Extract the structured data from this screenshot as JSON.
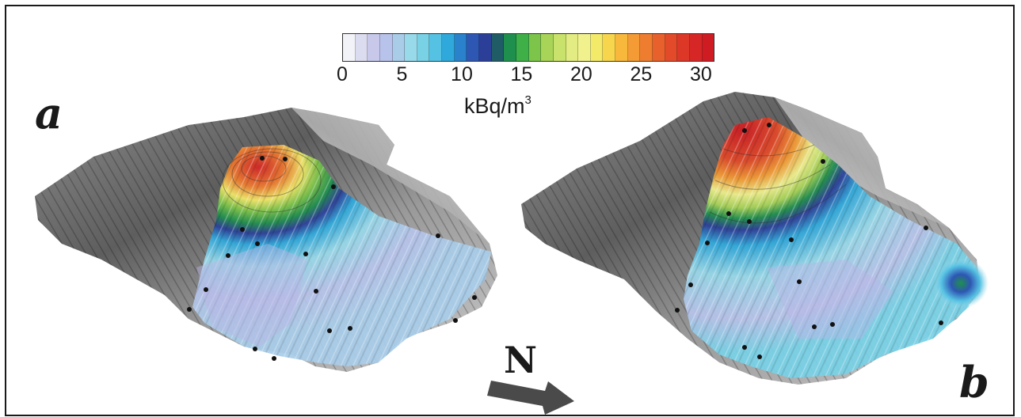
{
  "panels": {
    "left_label": "a",
    "right_label": "b"
  },
  "colorbar": {
    "tick_labels": [
      "0",
      "5",
      "10",
      "15",
      "20",
      "25",
      "30"
    ],
    "unit_base": "kBq/m",
    "unit_exponent": "3",
    "colors": [
      "#f2f3f8",
      "#dcdcf0",
      "#c8c8eb",
      "#b7c3ea",
      "#a9cde9",
      "#98d9ea",
      "#79d1e6",
      "#55c2e3",
      "#2fa9dc",
      "#2a82cc",
      "#2e56b3",
      "#2b3f99",
      "#1f5c66",
      "#1f8f4e",
      "#3fb048",
      "#7cc44a",
      "#a8d458",
      "#c8e26b",
      "#e2ec82",
      "#f1f28e",
      "#f4ea6a",
      "#f7d54c",
      "#f8b83c",
      "#f59b35",
      "#ef7d30",
      "#e8602c",
      "#e24a2a",
      "#dc3727",
      "#d62626",
      "#cf1b22"
    ]
  },
  "north_arrow": {
    "label": "N"
  }
}
